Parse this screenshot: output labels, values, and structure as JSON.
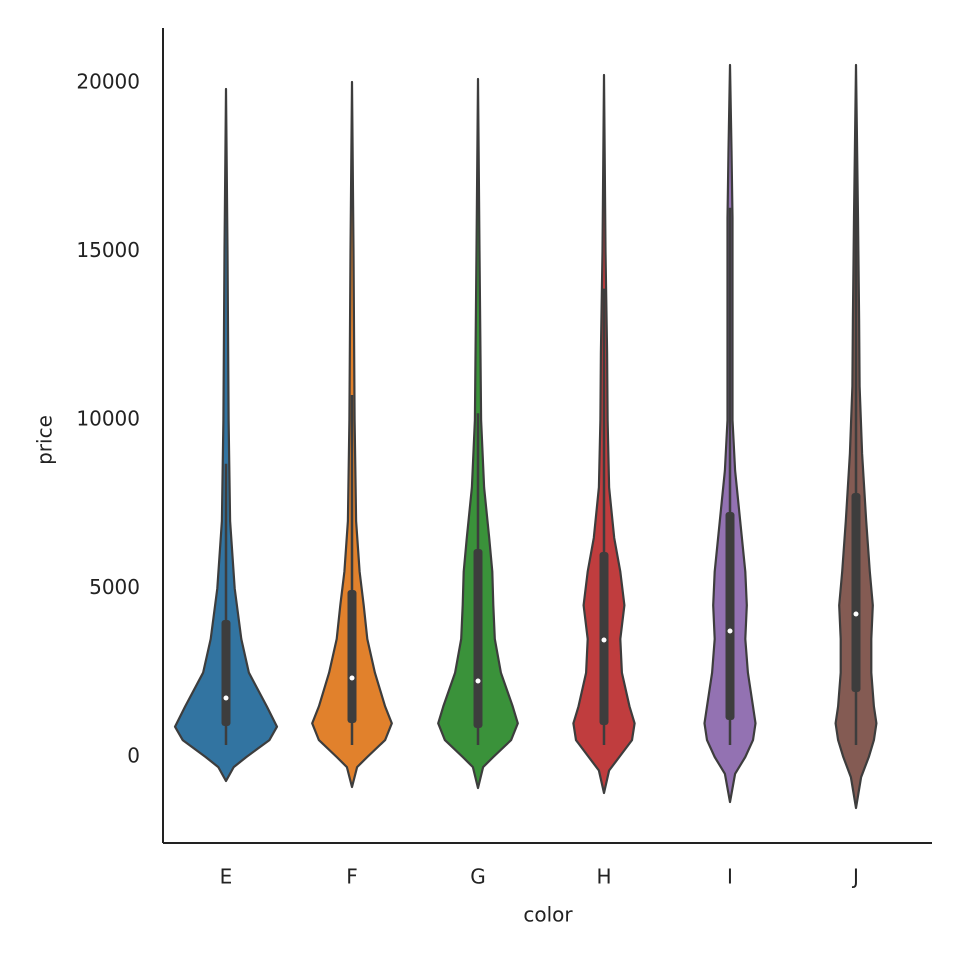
{
  "chart_data": {
    "type": "violin",
    "x_label": "color",
    "y_label": "price",
    "categories": [
      "E",
      "F",
      "G",
      "H",
      "I",
      "J"
    ],
    "ylim": [
      -2552,
      21632
    ],
    "yticks": [
      0,
      5000,
      10000,
      15000,
      20000
    ],
    "grid": false,
    "violins": [
      {
        "color": "#3274a1",
        "q1": 920,
        "median": 1751,
        "q3": 4065,
        "whisker_low": 356,
        "whisker_high": 8700,
        "density_y": [
          -712,
          -300,
          0,
          500,
          900,
          1500,
          2500,
          3500,
          5000,
          7000,
          10000,
          15000,
          19822
        ],
        "density": [
          0,
          0.15,
          0.4,
          0.85,
          1.0,
          0.8,
          0.45,
          0.3,
          0.17,
          0.08,
          0.05,
          0.03,
          0
        ]
      },
      {
        "color": "#e1812c",
        "q1": 1009,
        "median": 2344,
        "q3": 4955,
        "whisker_low": 356,
        "whisker_high": 10742,
        "density_y": [
          -890,
          -300,
          0,
          500,
          1000,
          1500,
          2500,
          3500,
          4500,
          5500,
          7000,
          10000,
          15000,
          20030
        ],
        "density": [
          0,
          0.1,
          0.3,
          0.65,
          0.78,
          0.65,
          0.45,
          0.3,
          0.23,
          0.15,
          0.08,
          0.05,
          0.03,
          0
        ]
      },
      {
        "color": "#3a923a",
        "q1": 860,
        "median": 2255,
        "q3": 6172,
        "whisker_low": 356,
        "whisker_high": 10200,
        "density_y": [
          -920,
          -300,
          0,
          500,
          1000,
          1500,
          2500,
          3500,
          4500,
          5500,
          6500,
          8000,
          10000,
          15000,
          20119
        ],
        "density": [
          0,
          0.1,
          0.3,
          0.65,
          0.78,
          0.68,
          0.45,
          0.33,
          0.3,
          0.28,
          0.22,
          0.12,
          0.06,
          0.03,
          0
        ]
      },
      {
        "color": "#c03d3e",
        "q1": 950,
        "median": 3472,
        "q3": 6083,
        "whisker_low": 356,
        "whisker_high": 13900,
        "density_y": [
          -1068,
          -400,
          0,
          500,
          1000,
          1500,
          2500,
          3500,
          4500,
          5500,
          6500,
          8000,
          10000,
          12000,
          15000,
          20237
        ],
        "density": [
          0,
          0.1,
          0.3,
          0.55,
          0.6,
          0.5,
          0.35,
          0.32,
          0.4,
          0.32,
          0.2,
          0.1,
          0.07,
          0.06,
          0.03,
          0
        ]
      },
      {
        "color": "#9372b2",
        "q1": 1098,
        "median": 3739,
        "q3": 7270,
        "whisker_low": 356,
        "whisker_high": 16300,
        "density_y": [
          -1335,
          -500,
          0,
          500,
          1000,
          1500,
          2500,
          3500,
          4500,
          5500,
          7000,
          8500,
          10000,
          12000,
          14000,
          16000,
          18000,
          20534
        ],
        "density": [
          0,
          0.1,
          0.3,
          0.45,
          0.5,
          0.45,
          0.35,
          0.3,
          0.33,
          0.3,
          0.2,
          0.1,
          0.05,
          0.05,
          0.05,
          0.05,
          0.03,
          0
        ]
      },
      {
        "color": "#845b53",
        "q1": 1929,
        "median": 4243,
        "q3": 7834,
        "whisker_low": 356,
        "whisker_high": 18000,
        "density_y": [
          -1513,
          -600,
          0,
          500,
          1000,
          1500,
          2500,
          3500,
          4500,
          5500,
          7000,
          9000,
          11000,
          13000,
          16000,
          20534
        ],
        "density": [
          0,
          0.1,
          0.25,
          0.35,
          0.4,
          0.35,
          0.3,
          0.3,
          0.33,
          0.27,
          0.2,
          0.12,
          0.07,
          0.06,
          0.04,
          0
        ]
      }
    ]
  }
}
